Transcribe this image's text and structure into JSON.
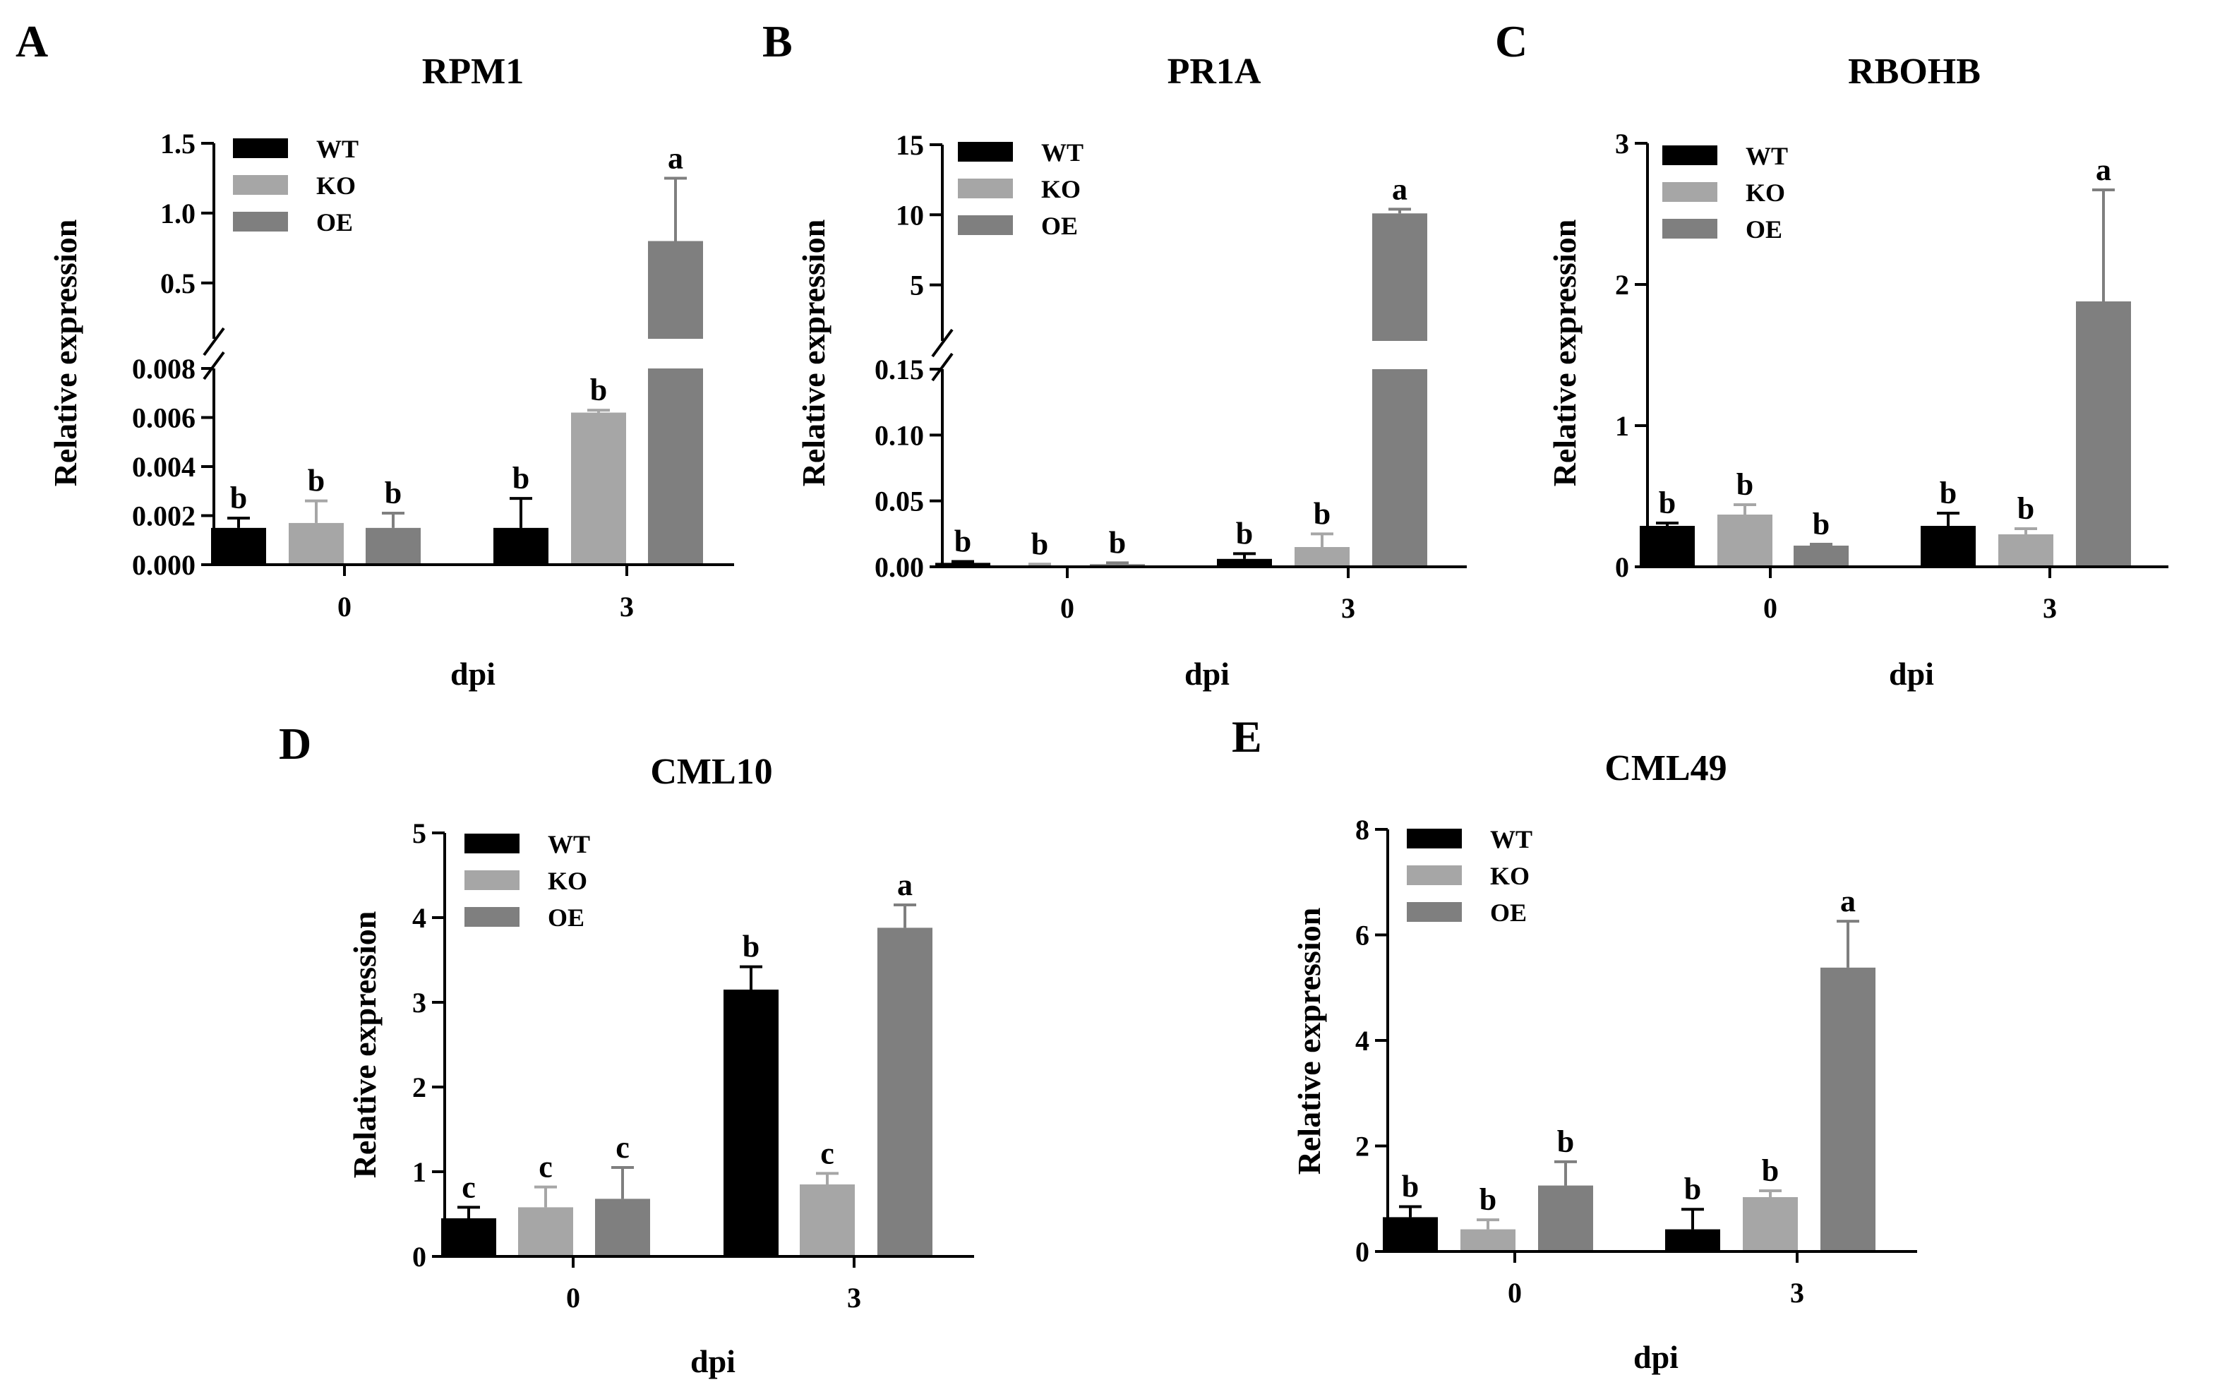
{
  "figure": {
    "panel_letters": [
      "A",
      "B",
      "C",
      "D",
      "E"
    ]
  },
  "styles": {
    "series_colors": {
      "WT": "#000000",
      "KO": "#a6a6a6",
      "OE": "#7f7f7f"
    },
    "axis_color": "#000000"
  },
  "chart_data": [
    {
      "panel": "A",
      "type": "bar",
      "title": "RPM1",
      "xlabel": "dpi",
      "ylabel": "Relative expression",
      "categories": [
        "0",
        "3"
      ],
      "legend": [
        "WT",
        "KO",
        "OE"
      ],
      "broken_axis": true,
      "lower_segment": {
        "ylim": [
          0,
          0.008
        ],
        "ticks": [
          "0.000",
          "0.002",
          "0.004",
          "0.006",
          "0.008"
        ]
      },
      "upper_segment": {
        "ylim": [
          0.1,
          1.5
        ],
        "ticks": [
          "0.5",
          "1.0",
          "1.5"
        ]
      },
      "series": [
        {
          "name": "WT",
          "values": [
            0.0015,
            0.0015
          ],
          "errors": [
            0.0004,
            0.0012
          ],
          "letters": [
            "b",
            "b"
          ]
        },
        {
          "name": "KO",
          "values": [
            0.0017,
            0.0062
          ],
          "errors": [
            0.0009,
            0.0001
          ],
          "letters": [
            "b",
            "b"
          ]
        },
        {
          "name": "OE",
          "values": [
            0.0015,
            0.8
          ],
          "errors": [
            0.0006,
            0.45
          ],
          "letters": [
            "b",
            "a"
          ]
        }
      ]
    },
    {
      "panel": "B",
      "type": "bar",
      "title": "PR1A",
      "xlabel": "dpi",
      "ylabel": "Relative expression",
      "categories": [
        "0",
        "3"
      ],
      "legend": [
        "WT",
        "KO",
        "OE"
      ],
      "broken_axis": true,
      "lower_segment": {
        "ylim": [
          0,
          0.15
        ],
        "ticks": [
          "0.00",
          "0.05",
          "0.10",
          "0.15"
        ]
      },
      "upper_segment": {
        "ylim": [
          1,
          15
        ],
        "ticks": [
          "5",
          "10",
          "15"
        ]
      },
      "series": [
        {
          "name": "WT",
          "values": [
            0.003,
            0.006
          ],
          "errors": [
            0.001,
            0.004
          ],
          "letters": [
            "b",
            "b"
          ]
        },
        {
          "name": "KO",
          "values": [
            0.001,
            0.015
          ],
          "errors": [
            0.001,
            0.01
          ],
          "letters": [
            "b",
            "b"
          ]
        },
        {
          "name": "OE",
          "values": [
            0.002,
            10.1
          ],
          "errors": [
            0.001,
            0.3
          ],
          "letters": [
            "b",
            "a"
          ]
        }
      ]
    },
    {
      "panel": "C",
      "type": "bar",
      "title": "RBOHB",
      "xlabel": "dpi",
      "ylabel": "Relative expression",
      "categories": [
        "0",
        "3"
      ],
      "legend": [
        "WT",
        "KO",
        "OE"
      ],
      "broken_axis": false,
      "ylim": [
        0,
        3
      ],
      "ticks": [
        "0",
        "1",
        "2",
        "3"
      ],
      "series": [
        {
          "name": "WT",
          "values": [
            0.29,
            0.29
          ],
          "errors": [
            0.02,
            0.09
          ],
          "letters": [
            "b",
            "b"
          ]
        },
        {
          "name": "KO",
          "values": [
            0.37,
            0.23
          ],
          "errors": [
            0.07,
            0.04
          ],
          "letters": [
            "b",
            "b"
          ]
        },
        {
          "name": "OE",
          "values": [
            0.15,
            1.88
          ],
          "errors": [
            0.01,
            0.79
          ],
          "letters": [
            "b",
            "a"
          ]
        }
      ]
    },
    {
      "panel": "D",
      "type": "bar",
      "title": "CML10",
      "xlabel": "dpi",
      "ylabel": "Relative expression",
      "categories": [
        "0",
        "3"
      ],
      "legend": [
        "WT",
        "KO",
        "OE"
      ],
      "broken_axis": false,
      "ylim": [
        0,
        5
      ],
      "ticks": [
        "0",
        "1",
        "2",
        "3",
        "4",
        "5"
      ],
      "series": [
        {
          "name": "WT",
          "values": [
            0.45,
            3.15
          ],
          "errors": [
            0.13,
            0.27
          ],
          "letters": [
            "c",
            "b"
          ]
        },
        {
          "name": "KO",
          "values": [
            0.58,
            0.85
          ],
          "errors": [
            0.24,
            0.13
          ],
          "letters": [
            "c",
            "c"
          ]
        },
        {
          "name": "OE",
          "values": [
            0.68,
            3.88
          ],
          "errors": [
            0.37,
            0.27
          ],
          "letters": [
            "c",
            "a"
          ]
        }
      ]
    },
    {
      "panel": "E",
      "type": "bar",
      "title": "CML49",
      "xlabel": "dpi",
      "ylabel": "Relative expression",
      "categories": [
        "0",
        "3"
      ],
      "legend": [
        "WT",
        "KO",
        "OE"
      ],
      "broken_axis": false,
      "ylim": [
        0,
        8
      ],
      "ticks": [
        "0",
        "2",
        "4",
        "6",
        "8"
      ],
      "series": [
        {
          "name": "WT",
          "values": [
            0.65,
            0.42
          ],
          "errors": [
            0.2,
            0.38
          ],
          "letters": [
            "b",
            "b"
          ]
        },
        {
          "name": "KO",
          "values": [
            0.42,
            1.03
          ],
          "errors": [
            0.18,
            0.12
          ],
          "letters": [
            "b",
            "b"
          ]
        },
        {
          "name": "OE",
          "values": [
            1.25,
            5.38
          ],
          "errors": [
            0.45,
            0.88
          ],
          "letters": [
            "b",
            "a"
          ]
        }
      ]
    }
  ]
}
